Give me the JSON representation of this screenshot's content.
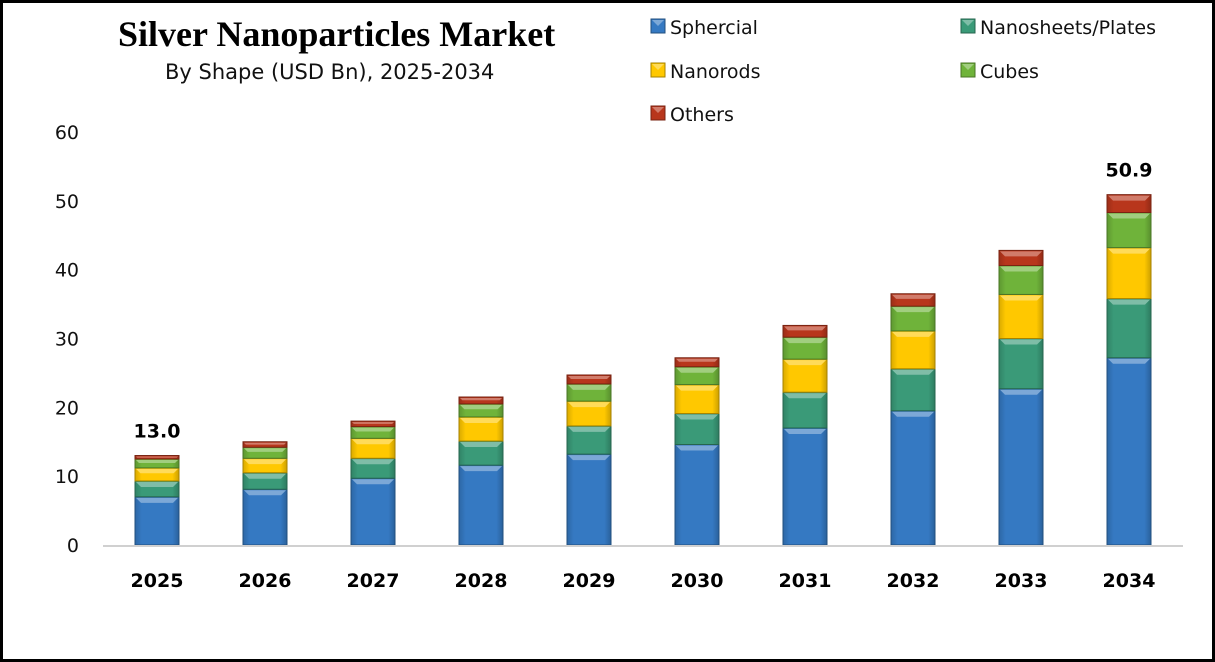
{
  "chart_data": {
    "type": "bar",
    "stacked": true,
    "title": "Silver Nanoparticles Market",
    "subtitle": "By Shape (USD Bn), 2025-2034",
    "xlabel": "",
    "ylabel": "",
    "ylim": [
      0,
      60
    ],
    "yticks": [
      0,
      10,
      20,
      30,
      40,
      50,
      60
    ],
    "grid": false,
    "legend_position": "top-right",
    "categories": [
      "2025",
      "2026",
      "2027",
      "2028",
      "2029",
      "2030",
      "2031",
      "2032",
      "2033",
      "2034"
    ],
    "series": [
      {
        "name": "Sphercial",
        "color": "#3579c2",
        "values": [
          7.0,
          8.1,
          9.7,
          11.6,
          13.2,
          14.6,
          17.0,
          19.5,
          22.7,
          27.2
        ]
      },
      {
        "name": "Nanosheets/Plates",
        "color": "#3a9a78",
        "values": [
          2.3,
          2.4,
          2.9,
          3.5,
          4.1,
          4.5,
          5.2,
          6.1,
          7.3,
          8.6
        ]
      },
      {
        "name": "Nanorods",
        "color": "#ffc800",
        "values": [
          1.9,
          2.1,
          2.9,
          3.5,
          3.6,
          4.2,
          4.8,
          5.5,
          6.4,
          7.4
        ]
      },
      {
        "name": "Cubes",
        "color": "#6fb33a",
        "values": [
          1.3,
          1.6,
          1.7,
          1.9,
          2.5,
          2.6,
          3.2,
          3.6,
          4.2,
          5.1
        ]
      },
      {
        "name": "Others",
        "color": "#b8361c",
        "values": [
          0.5,
          0.8,
          0.8,
          1.0,
          1.3,
          1.3,
          1.7,
          1.8,
          2.2,
          2.6
        ]
      }
    ],
    "annotations": [
      {
        "category": "2025",
        "text": "13.0"
      },
      {
        "category": "2034",
        "text": "50.9"
      }
    ]
  }
}
